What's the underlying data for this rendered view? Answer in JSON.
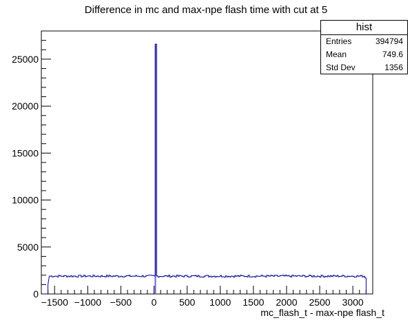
{
  "chart_data": {
    "type": "histogram",
    "title": "Difference in mc and max-npe flash time  with cut at 5",
    "xlabel": "mc_flash_t - max-npe flash_t",
    "ylabel": "",
    "xlim": [
      -1700,
      3300
    ],
    "ylim": [
      0,
      28000
    ],
    "xticks": [
      -1500,
      -1000,
      -500,
      0,
      500,
      1000,
      1500,
      2000,
      2500,
      3000
    ],
    "xtick_labels": [
      "−1500",
      "−1000",
      "−500",
      "0",
      "500",
      "1000",
      "1500",
      "2000",
      "2500",
      "3000"
    ],
    "yticks": [
      0,
      5000,
      10000,
      15000,
      20000,
      25000
    ],
    "ytick_labels": [
      "0",
      "5000",
      "10000",
      "15000",
      "20000",
      "25000"
    ],
    "range": [
      -1600,
      3200
    ],
    "baseline": 1900,
    "edge_start": [
      -1600,
      1000
    ],
    "edge_end": [
      3200,
      1700
    ],
    "peak": {
      "x0": 10,
      "x1": 30,
      "value": 26600
    },
    "line_color": "#00008b",
    "fill_color": "#6666cc",
    "grid": false
  },
  "stats": {
    "name": "hist",
    "rows": [
      {
        "label": "Entries",
        "value": "394794"
      },
      {
        "label": "Mean",
        "value": "749.6"
      },
      {
        "label": "Std Dev",
        "value": "1356"
      }
    ]
  }
}
